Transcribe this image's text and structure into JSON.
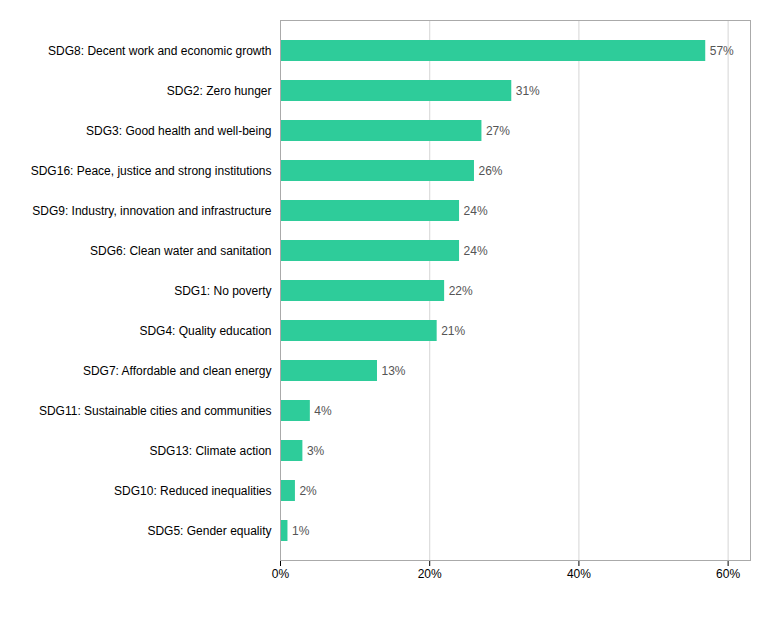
{
  "chart_data": {
    "type": "bar",
    "orientation": "horizontal",
    "categories": [
      "SDG8: Decent work and economic growth",
      "SDG2: Zero hunger",
      "SDG3: Good health and well-being",
      "SDG16: Peace, justice and strong institutions",
      "SDG9: Industry, innovation and infrastructure",
      "SDG6: Clean water and sanitation",
      "SDG1: No poverty",
      "SDG4: Quality education",
      "SDG7: Affordable and clean energy",
      "SDG11: Sustainable cities and communities",
      "SDG13: Climate action",
      "SDG10: Reduced inequalities",
      "SDG5: Gender equality"
    ],
    "values": [
      57,
      31,
      27,
      26,
      24,
      24,
      22,
      21,
      13,
      4,
      3,
      2,
      1
    ],
    "value_labels": [
      "57%",
      "31%",
      "27%",
      "26%",
      "24%",
      "24%",
      "22%",
      "21%",
      "13%",
      "4%",
      "3%",
      "2%",
      "1%"
    ],
    "color": "#2ECC9A",
    "xlim": [
      0,
      63
    ],
    "xticks": [
      {
        "value": 0,
        "label": "0%"
      },
      {
        "value": 20,
        "label": "20%"
      },
      {
        "value": 40,
        "label": "40%"
      },
      {
        "value": 60,
        "label": "60%"
      }
    ],
    "grid": true,
    "data_labels": true
  }
}
